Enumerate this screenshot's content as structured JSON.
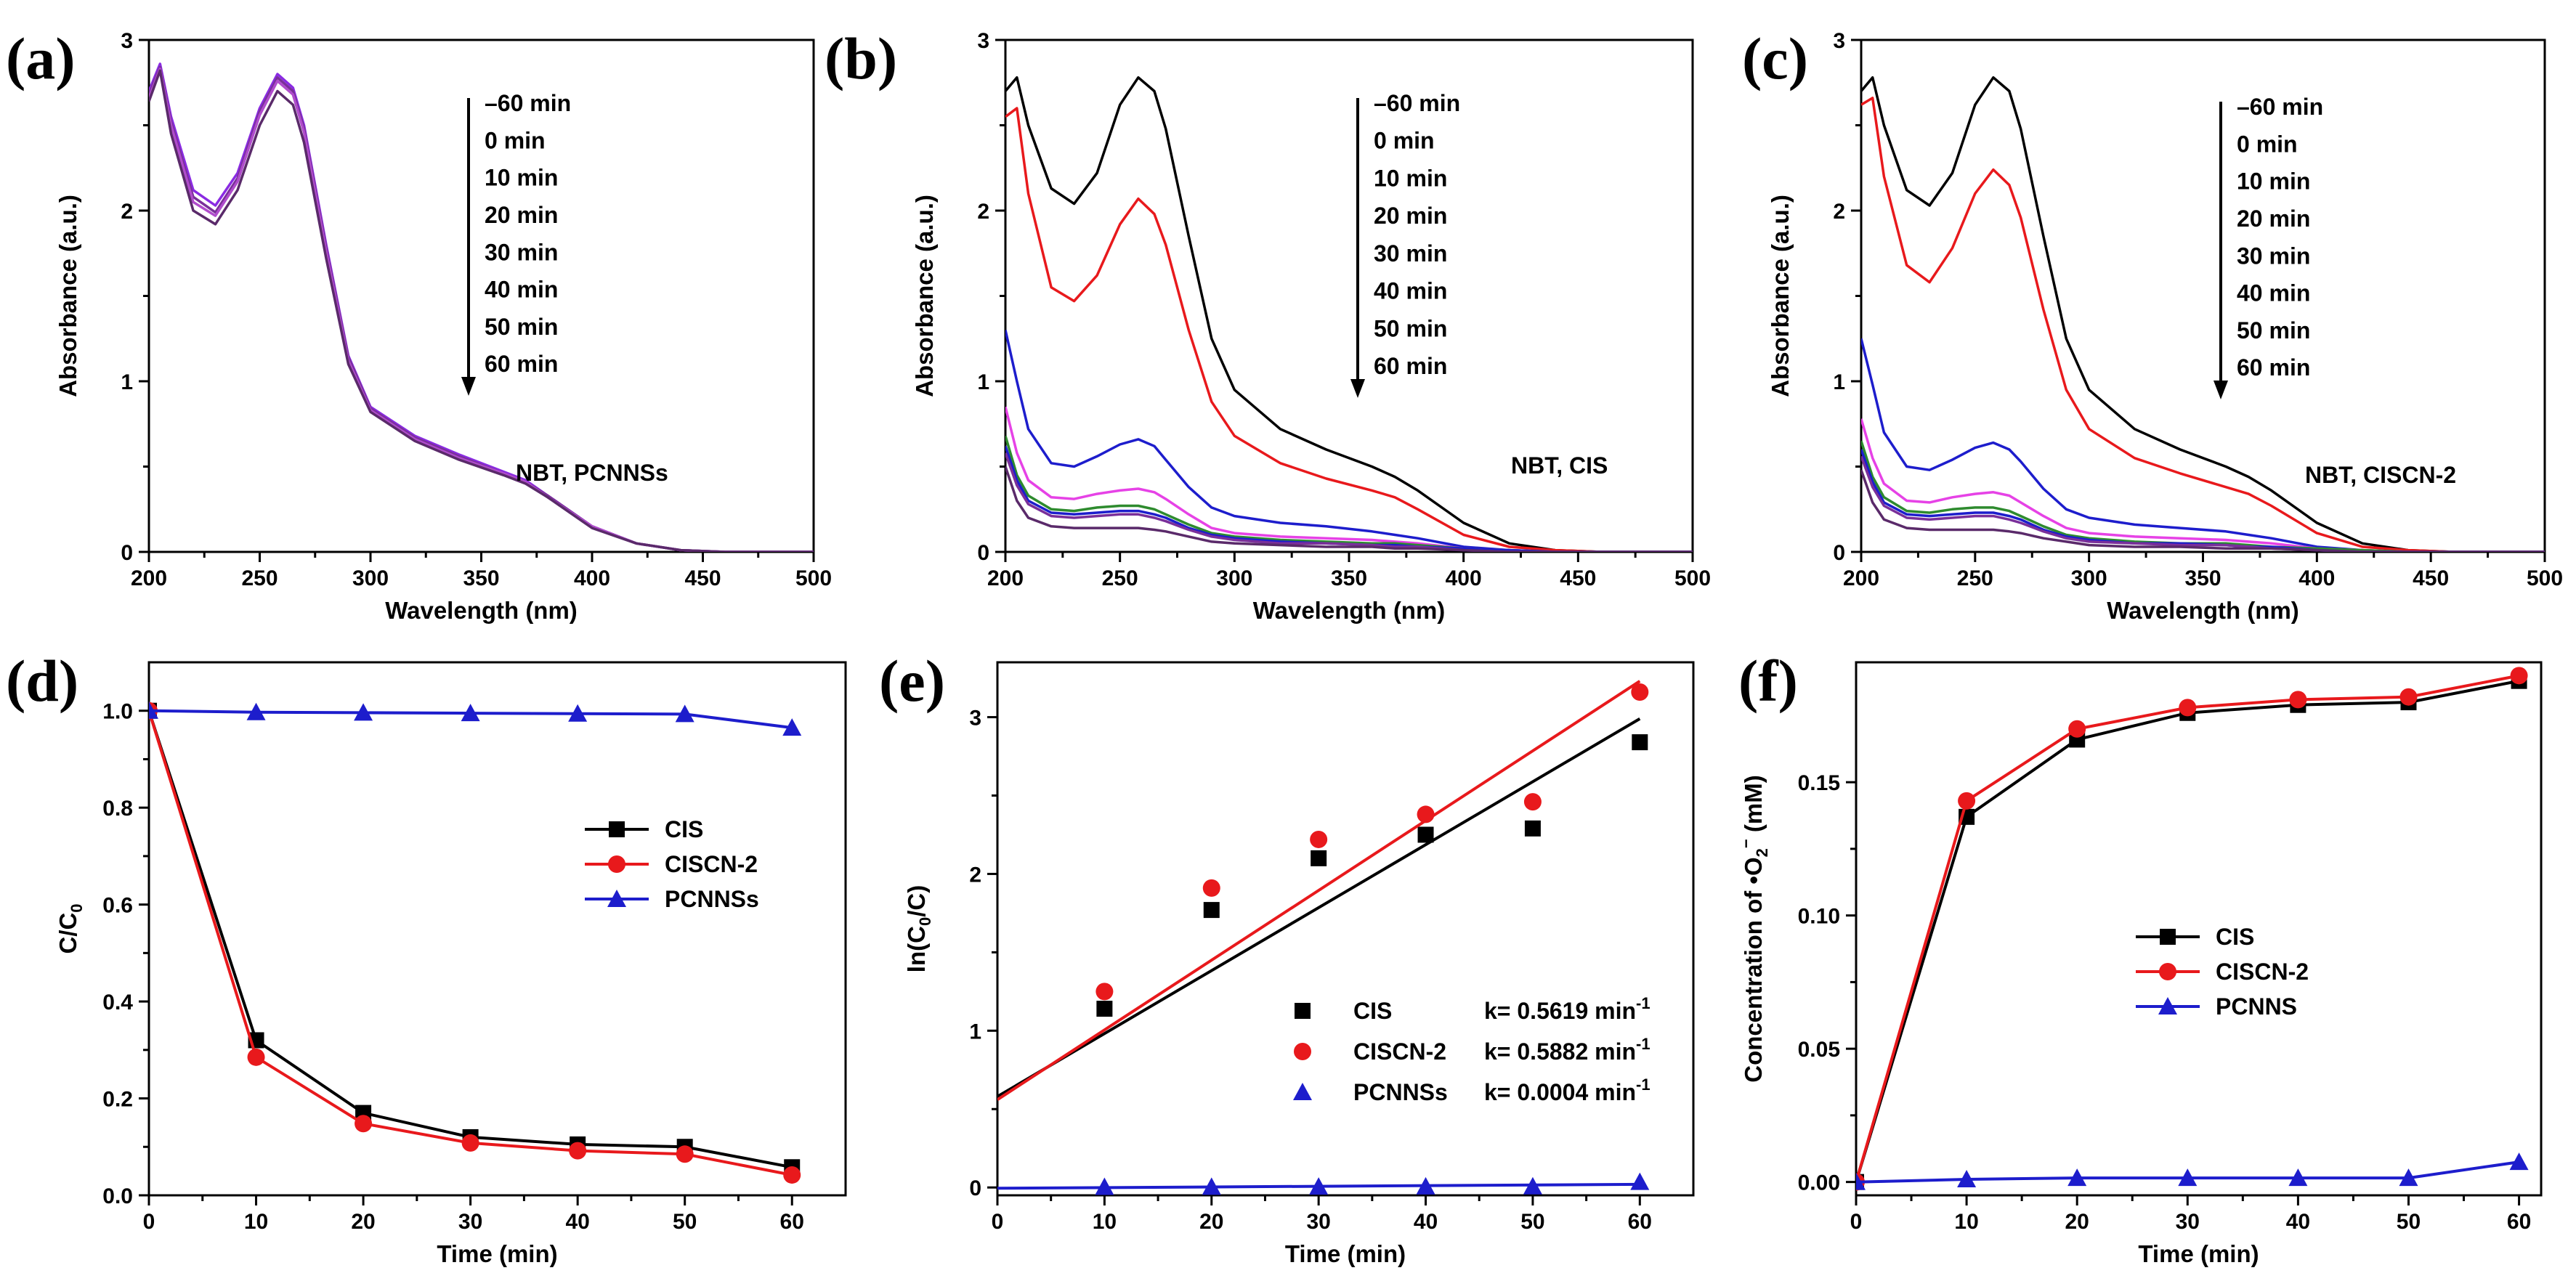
{
  "figure": {
    "colors": {
      "black": "#000000",
      "red": "#e8191c",
      "blue": "#1d1dcc",
      "magenta": "#e642e6",
      "green": "#2e8b2e",
      "purple": "#7a2f9a",
      "violet": "#8a2be2",
      "darkpurple": "#5a2a6a"
    }
  },
  "chart_data": [
    {
      "panel": "(a)",
      "type": "line",
      "xlabel": "Wavelength (nm)",
      "ylabel": "Absorbance (a.u.)",
      "xlim": [
        200,
        500
      ],
      "ylim": [
        0,
        3
      ],
      "xticks": [
        200,
        250,
        300,
        350,
        400,
        450,
        500
      ],
      "yticks": [
        0,
        1,
        2,
        3
      ],
      "annotation": "NBT, PCNNSs",
      "time_labels": [
        "–60 min",
        "0 min",
        "10 min",
        "20 min",
        "30 min",
        "40 min",
        "50 min",
        "60 min"
      ],
      "x": [
        200,
        205,
        210,
        220,
        230,
        240,
        250,
        258,
        265,
        270,
        280,
        290,
        300,
        320,
        340,
        360,
        370,
        380,
        400,
        420,
        440,
        460,
        500
      ],
      "series": [
        {
          "name": "–60 min",
          "color": "#8a2be2",
          "values": [
            2.7,
            2.86,
            2.55,
            2.12,
            2.03,
            2.22,
            2.6,
            2.8,
            2.72,
            2.5,
            1.8,
            1.15,
            0.85,
            0.68,
            0.57,
            0.47,
            0.42,
            0.33,
            0.15,
            0.05,
            0.01,
            0.0,
            0.0
          ]
        },
        {
          "name": "0 min",
          "color": "#7a2f9a",
          "values": [
            2.68,
            2.84,
            2.52,
            2.08,
            1.99,
            2.19,
            2.58,
            2.78,
            2.7,
            2.48,
            1.78,
            1.14,
            0.84,
            0.67,
            0.56,
            0.46,
            0.41,
            0.33,
            0.15,
            0.05,
            0.01,
            0.0,
            0.0
          ]
        },
        {
          "name": "30 min",
          "color": "#b04ccc",
          "values": [
            2.66,
            2.83,
            2.5,
            2.05,
            1.97,
            2.17,
            2.56,
            2.76,
            2.68,
            2.46,
            1.76,
            1.12,
            0.83,
            0.66,
            0.55,
            0.46,
            0.41,
            0.32,
            0.15,
            0.05,
            0.01,
            0.0,
            0.0
          ]
        },
        {
          "name": "60 min",
          "color": "#5a2a6a",
          "values": [
            2.64,
            2.82,
            2.45,
            2.0,
            1.92,
            2.12,
            2.5,
            2.7,
            2.62,
            2.4,
            1.72,
            1.1,
            0.82,
            0.65,
            0.54,
            0.45,
            0.4,
            0.32,
            0.14,
            0.05,
            0.01,
            0.0,
            0.0
          ]
        }
      ]
    },
    {
      "panel": "(b)",
      "type": "line",
      "xlabel": "Wavelength (nm)",
      "ylabel": "Absorbance (a.u.)",
      "xlim": [
        200,
        500
      ],
      "ylim": [
        0,
        3
      ],
      "xticks": [
        200,
        250,
        300,
        350,
        400,
        450,
        500
      ],
      "yticks": [
        0,
        1,
        2,
        3
      ],
      "annotation": "NBT, CIS",
      "time_labels": [
        "–60 min",
        "0 min",
        "10 min",
        "20 min",
        "30 min",
        "40 min",
        "50 min",
        "60 min"
      ],
      "x": [
        200,
        205,
        210,
        220,
        230,
        240,
        250,
        258,
        265,
        270,
        280,
        290,
        300,
        320,
        340,
        360,
        370,
        380,
        400,
        420,
        440,
        460,
        500
      ],
      "series": [
        {
          "name": "–60 min",
          "color": "#000000",
          "values": [
            2.7,
            2.78,
            2.5,
            2.13,
            2.04,
            2.22,
            2.62,
            2.78,
            2.7,
            2.48,
            1.85,
            1.25,
            0.95,
            0.72,
            0.6,
            0.5,
            0.44,
            0.36,
            0.17,
            0.05,
            0.01,
            0.0,
            0.0
          ]
        },
        {
          "name": "0 min",
          "color": "#e8191c",
          "values": [
            2.55,
            2.6,
            2.1,
            1.55,
            1.47,
            1.62,
            1.92,
            2.07,
            1.98,
            1.8,
            1.3,
            0.88,
            0.68,
            0.52,
            0.43,
            0.36,
            0.32,
            0.25,
            0.1,
            0.03,
            0.01,
            0.0,
            0.0
          ]
        },
        {
          "name": "10 min",
          "color": "#1d1dcc",
          "values": [
            1.3,
            1.0,
            0.72,
            0.52,
            0.5,
            0.56,
            0.63,
            0.66,
            0.62,
            0.54,
            0.38,
            0.26,
            0.21,
            0.17,
            0.15,
            0.12,
            0.1,
            0.08,
            0.03,
            0.01,
            0.0,
            0.0,
            0.0
          ]
        },
        {
          "name": "20 min",
          "color": "#e642e6",
          "values": [
            0.85,
            0.58,
            0.42,
            0.32,
            0.31,
            0.34,
            0.36,
            0.37,
            0.35,
            0.31,
            0.22,
            0.14,
            0.11,
            0.09,
            0.08,
            0.07,
            0.06,
            0.05,
            0.02,
            0.01,
            0.0,
            0.0,
            0.0
          ]
        },
        {
          "name": "30 min",
          "color": "#2e8b2e",
          "values": [
            0.68,
            0.45,
            0.33,
            0.25,
            0.24,
            0.26,
            0.27,
            0.27,
            0.25,
            0.22,
            0.16,
            0.11,
            0.09,
            0.07,
            0.06,
            0.05,
            0.05,
            0.04,
            0.02,
            0.01,
            0.0,
            0.0,
            0.0
          ]
        },
        {
          "name": "40 min",
          "color": "#1d1dcc",
          "values": [
            0.62,
            0.42,
            0.3,
            0.23,
            0.22,
            0.23,
            0.24,
            0.24,
            0.22,
            0.2,
            0.14,
            0.1,
            0.08,
            0.06,
            0.05,
            0.04,
            0.04,
            0.03,
            0.02,
            0.01,
            0.0,
            0.0,
            0.0
          ]
        },
        {
          "name": "50 min",
          "color": "#7a2f9a",
          "values": [
            0.58,
            0.39,
            0.28,
            0.21,
            0.2,
            0.21,
            0.22,
            0.22,
            0.2,
            0.18,
            0.13,
            0.09,
            0.07,
            0.05,
            0.05,
            0.04,
            0.03,
            0.03,
            0.01,
            0.0,
            0.0,
            0.0,
            0.0
          ]
        },
        {
          "name": "60 min",
          "color": "#5a2a6a",
          "values": [
            0.5,
            0.3,
            0.2,
            0.15,
            0.14,
            0.14,
            0.14,
            0.14,
            0.13,
            0.12,
            0.09,
            0.06,
            0.05,
            0.04,
            0.03,
            0.03,
            0.02,
            0.02,
            0.01,
            0.0,
            0.0,
            0.0,
            0.0
          ]
        }
      ]
    },
    {
      "panel": "(c)",
      "type": "line",
      "xlabel": "Wavelength (nm)",
      "ylabel": "Absorbance (a.u.)",
      "xlim": [
        200,
        500
      ],
      "ylim": [
        0,
        3
      ],
      "xticks": [
        200,
        250,
        300,
        350,
        400,
        450,
        500
      ],
      "yticks": [
        0,
        1,
        2,
        3
      ],
      "annotation": "NBT, CISCN-2",
      "time_labels": [
        "–60 min",
        "0 min",
        "10 min",
        "20 min",
        "30 min",
        "40 min",
        "50 min",
        "60 min"
      ],
      "x": [
        200,
        205,
        210,
        220,
        230,
        240,
        250,
        258,
        265,
        270,
        280,
        290,
        300,
        320,
        340,
        360,
        370,
        380,
        400,
        420,
        440,
        460,
        500
      ],
      "series": [
        {
          "name": "–60 min",
          "color": "#000000",
          "values": [
            2.7,
            2.78,
            2.5,
            2.12,
            2.03,
            2.22,
            2.62,
            2.78,
            2.7,
            2.48,
            1.85,
            1.25,
            0.95,
            0.72,
            0.6,
            0.5,
            0.44,
            0.36,
            0.17,
            0.05,
            0.01,
            0.0,
            0.0
          ]
        },
        {
          "name": "0 min",
          "color": "#e8191c",
          "values": [
            2.62,
            2.66,
            2.2,
            1.68,
            1.58,
            1.78,
            2.1,
            2.24,
            2.15,
            1.96,
            1.42,
            0.95,
            0.72,
            0.55,
            0.46,
            0.38,
            0.34,
            0.27,
            0.11,
            0.03,
            0.01,
            0.0,
            0.0
          ]
        },
        {
          "name": "10 min",
          "color": "#1d1dcc",
          "values": [
            1.25,
            0.98,
            0.7,
            0.5,
            0.48,
            0.54,
            0.61,
            0.64,
            0.6,
            0.53,
            0.37,
            0.25,
            0.2,
            0.16,
            0.14,
            0.12,
            0.1,
            0.08,
            0.03,
            0.01,
            0.0,
            0.0,
            0.0
          ]
        },
        {
          "name": "20 min",
          "color": "#e642e6",
          "values": [
            0.78,
            0.55,
            0.4,
            0.3,
            0.29,
            0.32,
            0.34,
            0.35,
            0.33,
            0.29,
            0.21,
            0.14,
            0.11,
            0.09,
            0.08,
            0.07,
            0.06,
            0.05,
            0.02,
            0.01,
            0.0,
            0.0,
            0.0
          ]
        },
        {
          "name": "30 min",
          "color": "#2e8b2e",
          "values": [
            0.65,
            0.44,
            0.32,
            0.24,
            0.23,
            0.25,
            0.26,
            0.26,
            0.24,
            0.21,
            0.15,
            0.1,
            0.08,
            0.06,
            0.05,
            0.05,
            0.04,
            0.03,
            0.02,
            0.01,
            0.0,
            0.0,
            0.0
          ]
        },
        {
          "name": "40 min",
          "color": "#1d1dcc",
          "values": [
            0.6,
            0.41,
            0.29,
            0.22,
            0.21,
            0.22,
            0.23,
            0.23,
            0.21,
            0.19,
            0.13,
            0.09,
            0.07,
            0.05,
            0.05,
            0.04,
            0.03,
            0.03,
            0.01,
            0.0,
            0.0,
            0.0,
            0.0
          ]
        },
        {
          "name": "50 min",
          "color": "#7a2f9a",
          "values": [
            0.56,
            0.38,
            0.27,
            0.2,
            0.19,
            0.2,
            0.21,
            0.21,
            0.19,
            0.17,
            0.12,
            0.08,
            0.06,
            0.05,
            0.04,
            0.04,
            0.03,
            0.02,
            0.01,
            0.0,
            0.0,
            0.0,
            0.0
          ]
        },
        {
          "name": "60 min",
          "color": "#5a2a6a",
          "values": [
            0.48,
            0.29,
            0.19,
            0.14,
            0.13,
            0.13,
            0.13,
            0.13,
            0.12,
            0.11,
            0.08,
            0.06,
            0.04,
            0.03,
            0.03,
            0.02,
            0.02,
            0.02,
            0.01,
            0.0,
            0.0,
            0.0,
            0.0
          ]
        }
      ]
    },
    {
      "panel": "(d)",
      "type": "line",
      "xlabel": "Time (min)",
      "ylabel": "C/C",
      "ylabel_sub": "0",
      "xlim": [
        0,
        65
      ],
      "ylim": [
        0,
        1.1
      ],
      "xticks": [
        0,
        10,
        20,
        30,
        40,
        50,
        60
      ],
      "yticks": [
        0.0,
        0.2,
        0.4,
        0.6,
        0.8,
        1.0
      ],
      "x": [
        0,
        10,
        20,
        30,
        40,
        50,
        60
      ],
      "series": [
        {
          "name": "CIS",
          "color": "#000000",
          "marker": "square",
          "values": [
            1.0,
            0.32,
            0.17,
            0.12,
            0.105,
            0.1,
            0.058
          ]
        },
        {
          "name": "CISCN-2",
          "color": "#e8191c",
          "marker": "circle",
          "values": [
            1.0,
            0.285,
            0.148,
            0.108,
            0.092,
            0.085,
            0.042
          ]
        },
        {
          "name": "PCNNSs",
          "color": "#1d1dcc",
          "marker": "triangle",
          "values": [
            1.0,
            0.997,
            0.996,
            0.995,
            0.994,
            0.993,
            0.965
          ]
        }
      ]
    },
    {
      "panel": "(e)",
      "type": "scatter",
      "xlabel": "Time (min)",
      "ylabel": "ln(C",
      "ylabel_sub": "0",
      "ylabel_end": "/C)",
      "xlim": [
        0,
        65
      ],
      "ylim": [
        -0.05,
        3.35
      ],
      "xticks": [
        0,
        10,
        20,
        30,
        40,
        50,
        60
      ],
      "yticks": [
        0,
        1,
        2,
        3
      ],
      "x": [
        10,
        20,
        30,
        40,
        50,
        60
      ],
      "series": [
        {
          "name": "CIS",
          "color": "#000000",
          "marker": "square",
          "values": [
            1.14,
            1.77,
            2.1,
            2.25,
            2.29,
            2.84
          ],
          "k_label": "k= 0.5619 min",
          "fit": [
            0.58,
            2.99
          ]
        },
        {
          "name": "CISCN-2",
          "color": "#e8191c",
          "marker": "circle",
          "values": [
            1.25,
            1.91,
            2.22,
            2.38,
            2.46,
            3.16
          ],
          "k_label": "k= 0.5882 min",
          "fit": [
            0.56,
            3.23
          ]
        },
        {
          "name": "PCNNSs",
          "color": "#1d1dcc",
          "marker": "triangle",
          "values": [
            0.003,
            0.004,
            0.005,
            0.006,
            0.007,
            0.035
          ],
          "k_label": "k= 0.0004 min",
          "fit": [
            -0.005,
            0.02
          ]
        }
      ],
      "k_superscript": "-1"
    },
    {
      "panel": "(f)",
      "type": "line",
      "xlabel": "Time (min)",
      "ylabel": "Concentration of •O",
      "ylabel_sub": "2",
      "ylabel_sup": "−",
      "ylabel_end": " (mM)",
      "xlim": [
        0,
        62
      ],
      "ylim": [
        -0.005,
        0.195
      ],
      "xticks": [
        0,
        10,
        20,
        30,
        40,
        50,
        60
      ],
      "yticks": [
        0.0,
        0.05,
        0.1,
        0.15
      ],
      "ytick_labels": [
        "0.00",
        "0.05",
        "0.10",
        "0.15"
      ],
      "x": [
        0,
        10,
        20,
        30,
        40,
        50,
        60
      ],
      "series": [
        {
          "name": "CIS",
          "color": "#000000",
          "marker": "square",
          "values": [
            0.0,
            0.137,
            0.166,
            0.176,
            0.179,
            0.18,
            0.188
          ]
        },
        {
          "name": "CISCN-2",
          "color": "#e8191c",
          "marker": "circle",
          "values": [
            0.0,
            0.143,
            0.17,
            0.178,
            0.181,
            0.182,
            0.19
          ]
        },
        {
          "name": "PCNNS",
          "color": "#1d1dcc",
          "marker": "triangle",
          "values": [
            0.0,
            0.001,
            0.0015,
            0.0015,
            0.0015,
            0.0015,
            0.0075
          ]
        }
      ]
    }
  ]
}
